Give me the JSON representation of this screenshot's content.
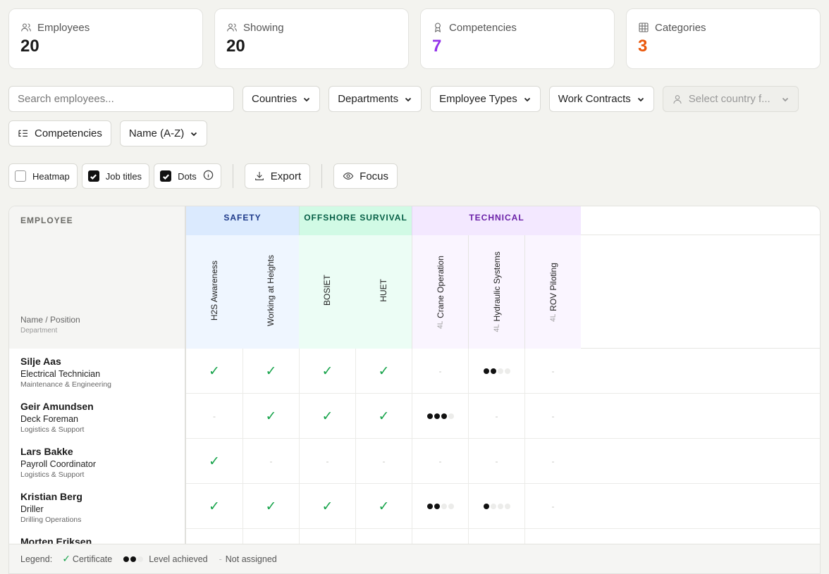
{
  "stats": [
    {
      "label": "Employees",
      "value": "20",
      "color": "#1a1a1a",
      "icon": "users-icon"
    },
    {
      "label": "Showing",
      "value": "20",
      "color": "#1a1a1a",
      "icon": "users-icon"
    },
    {
      "label": "Competencies",
      "value": "7",
      "color": "#9333ea",
      "icon": "award-icon"
    },
    {
      "label": "Categories",
      "value": "3",
      "color": "#ea580c",
      "icon": "grid-icon"
    }
  ],
  "filters": {
    "search_placeholder": "Search employees...",
    "countries": "Countries",
    "departments": "Departments",
    "employee_types": "Employee Types",
    "work_contracts": "Work Contracts",
    "select_country": "Select country f...",
    "competencies": "Competencies",
    "sort": "Name (A-Z)"
  },
  "toolbar": {
    "heatmap": {
      "label": "Heatmap",
      "checked": false
    },
    "job_titles": {
      "label": "Job titles",
      "checked": true
    },
    "dots": {
      "label": "Dots",
      "checked": true
    },
    "export": "Export",
    "focus": "Focus"
  },
  "matrix": {
    "employee_header": "EMPLOYEE",
    "name_position": "Name / Position",
    "department": "Department",
    "categories": {
      "safety": "SAFETY",
      "offshore": "OFFSHORE SURVIVAL",
      "technical": "TECHNICAL"
    },
    "columns": [
      {
        "name": "H2S Awareness",
        "level": ""
      },
      {
        "name": "Working at Heights",
        "level": ""
      },
      {
        "name": "BOSIET",
        "level": ""
      },
      {
        "name": "HUET",
        "level": ""
      },
      {
        "name": "Crane Operation",
        "level": "4L"
      },
      {
        "name": "Hydraulic Systems",
        "level": "4L"
      },
      {
        "name": "ROV Piloting",
        "level": "4L"
      }
    ],
    "employees": [
      {
        "name": "Silje Aas",
        "title": "Electrical Technician",
        "dept": "Maintenance & Engineering",
        "cells": [
          "c",
          "c",
          "c",
          "c",
          "-",
          "2",
          "-"
        ]
      },
      {
        "name": "Geir Amundsen",
        "title": "Deck Foreman",
        "dept": "Logistics & Support",
        "cells": [
          "-",
          "c",
          "c",
          "c",
          "3",
          "-",
          "-"
        ]
      },
      {
        "name": "Lars Bakke",
        "title": "Payroll Coordinator",
        "dept": "Logistics & Support",
        "cells": [
          "c",
          "-",
          "-",
          "-",
          "-",
          "-",
          "-"
        ]
      },
      {
        "name": "Kristian Berg",
        "title": "Driller",
        "dept": "Drilling Operations",
        "cells": [
          "c",
          "c",
          "c",
          "c",
          "2",
          "1",
          "-"
        ]
      },
      {
        "name": "Morten Eriksen",
        "title": "",
        "dept": "",
        "cells": [
          "",
          "",
          "",
          "",
          "",
          "",
          ""
        ]
      }
    ]
  },
  "legend": {
    "title": "Legend:",
    "certificate": "Certificate",
    "level": "Level achieved",
    "not_assigned": "Not assigned"
  }
}
